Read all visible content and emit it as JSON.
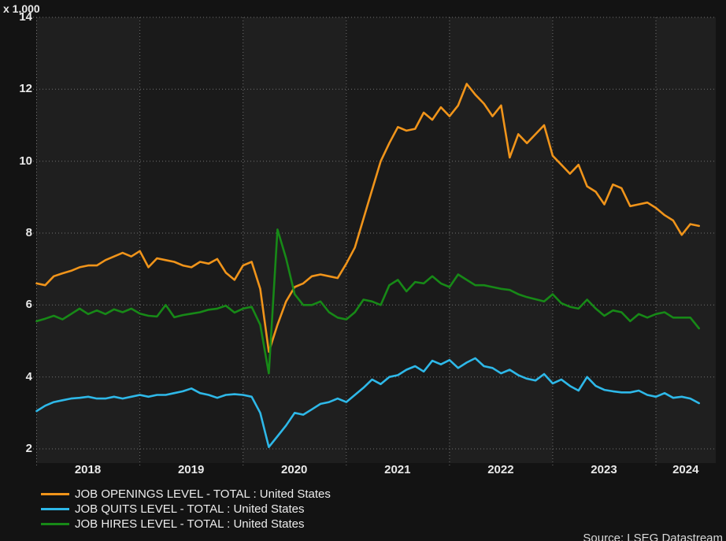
{
  "chart_data": {
    "type": "line",
    "title": "",
    "unit_label": "x 1,000",
    "source": "Source: LSEG Datastream",
    "frequency": "monthly",
    "x_start": "2018-01",
    "x_end": "2024-06",
    "months_span_axis": 79,
    "year_labels": [
      "2018",
      "2019",
      "2020",
      "2021",
      "2022",
      "2023",
      "2024"
    ],
    "y_ticks": [
      2,
      4,
      6,
      8,
      10,
      12,
      14
    ],
    "y_axis_max": 14,
    "y_axis_min": 1.6,
    "grid": true,
    "legend_position": "bottom-left",
    "background_color": "#131313",
    "plot_bands": {
      "even_year_color": "#1f1f1f",
      "odd_year_color": "#1a1a1a"
    },
    "gridline_color": "#717171",
    "text_color": "#e9e9e9",
    "series": [
      {
        "name": "JOB OPENINGS LEVEL - TOTAL : United States",
        "color": "#f0941a",
        "values": [
          6.6,
          6.55,
          6.8,
          6.88,
          6.95,
          7.05,
          7.1,
          7.1,
          7.25,
          7.35,
          7.45,
          7.35,
          7.5,
          7.05,
          7.3,
          7.25,
          7.2,
          7.1,
          7.05,
          7.2,
          7.15,
          7.28,
          6.9,
          6.7,
          7.1,
          7.2,
          6.45,
          4.7,
          5.45,
          6.1,
          6.5,
          6.6,
          6.8,
          6.85,
          6.8,
          6.75,
          7.15,
          7.6,
          8.4,
          9.2,
          10.0,
          10.5,
          10.95,
          10.85,
          10.9,
          11.35,
          11.15,
          11.5,
          11.25,
          11.55,
          12.15,
          11.85,
          11.6,
          11.25,
          11.55,
          10.1,
          10.75,
          10.5,
          10.75,
          11.0,
          10.15,
          9.9,
          9.65,
          9.9,
          9.3,
          9.15,
          8.8,
          9.35,
          9.25,
          8.75,
          8.8,
          8.85,
          8.7,
          8.5,
          8.35,
          7.95,
          8.25,
          8.2
        ]
      },
      {
        "name": "JOB QUITS LEVEL - TOTAL : United States",
        "color": "#2eb8e8",
        "values": [
          3.05,
          3.2,
          3.3,
          3.35,
          3.4,
          3.42,
          3.45,
          3.4,
          3.4,
          3.45,
          3.4,
          3.45,
          3.5,
          3.45,
          3.5,
          3.5,
          3.55,
          3.6,
          3.68,
          3.55,
          3.5,
          3.42,
          3.5,
          3.52,
          3.5,
          3.45,
          3.0,
          2.05,
          2.35,
          2.65,
          3.0,
          2.95,
          3.1,
          3.25,
          3.3,
          3.4,
          3.3,
          3.5,
          3.7,
          3.93,
          3.8,
          4.0,
          4.05,
          4.2,
          4.3,
          4.15,
          4.45,
          4.35,
          4.47,
          4.25,
          4.4,
          4.52,
          4.3,
          4.25,
          4.1,
          4.2,
          4.05,
          3.95,
          3.9,
          4.08,
          3.82,
          3.93,
          3.75,
          3.62,
          4.0,
          3.75,
          3.64,
          3.6,
          3.57,
          3.57,
          3.62,
          3.5,
          3.45,
          3.55,
          3.42,
          3.45,
          3.4,
          3.27
        ]
      },
      {
        "name": "JOB HIRES LEVEL - TOTAL : United States",
        "color": "#178917",
        "values": [
          5.55,
          5.62,
          5.7,
          5.6,
          5.75,
          5.9,
          5.75,
          5.85,
          5.75,
          5.88,
          5.8,
          5.9,
          5.76,
          5.7,
          5.68,
          6.0,
          5.66,
          5.72,
          5.76,
          5.8,
          5.87,
          5.9,
          5.98,
          5.79,
          5.9,
          5.95,
          5.45,
          4.1,
          8.1,
          7.3,
          6.3,
          6.0,
          6.0,
          6.1,
          5.8,
          5.65,
          5.6,
          5.8,
          6.15,
          6.1,
          6.0,
          6.55,
          6.7,
          6.38,
          6.64,
          6.6,
          6.8,
          6.6,
          6.5,
          6.85,
          6.7,
          6.55,
          6.55,
          6.5,
          6.45,
          6.42,
          6.3,
          6.22,
          6.16,
          6.1,
          6.3,
          6.05,
          5.95,
          5.9,
          6.15,
          5.9,
          5.7,
          5.85,
          5.8,
          5.55,
          5.75,
          5.65,
          5.75,
          5.8,
          5.65,
          5.65,
          5.65,
          5.35
        ]
      }
    ]
  }
}
